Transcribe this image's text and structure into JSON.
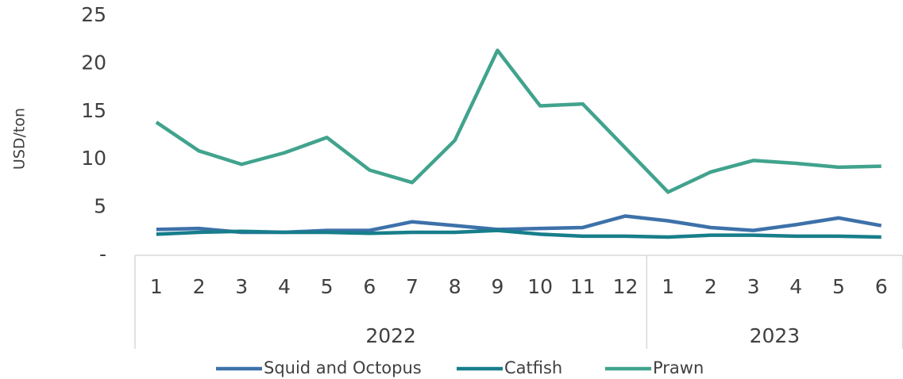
{
  "chart_data": {
    "type": "line",
    "y_label": "USD/ton",
    "categories": [
      "1",
      "2",
      "3",
      "4",
      "5",
      "6",
      "7",
      "8",
      "9",
      "10",
      "11",
      "12",
      "1",
      "2",
      "3",
      "4",
      "5",
      "6"
    ],
    "x_groups": [
      {
        "label": "2022",
        "span": 12
      },
      {
        "label": "2023",
        "span": 6
      }
    ],
    "series": [
      {
        "name": "Squid and Octopus",
        "color": "#3d71a9",
        "values": [
          2.7,
          2.8,
          2.4,
          2.4,
          2.6,
          2.6,
          3.5,
          3.1,
          2.7,
          2.8,
          2.9,
          4.1,
          3.6,
          2.9,
          2.6,
          3.2,
          3.9,
          3.1
        ]
      },
      {
        "name": "Catfish",
        "color": "#177e8b",
        "values": [
          2.2,
          2.4,
          2.5,
          2.4,
          2.4,
          2.3,
          2.4,
          2.4,
          2.6,
          2.2,
          2.0,
          2.0,
          1.9,
          2.1,
          2.1,
          2.0,
          2.0,
          1.9
        ]
      },
      {
        "name": "Prawn",
        "color": "#41a38d",
        "values": [
          13.9,
          10.9,
          9.5,
          10.7,
          12.3,
          8.9,
          7.6,
          12.0,
          21.4,
          15.6,
          15.8,
          11.2,
          6.6,
          8.7,
          9.9,
          9.6,
          9.2,
          9.3
        ]
      }
    ],
    "ylim": [
      0,
      25
    ],
    "yticks": [
      {
        "value": 0,
        "label": "-"
      },
      5,
      10,
      15,
      20,
      25
    ],
    "grid": false,
    "legend": "bottom"
  }
}
